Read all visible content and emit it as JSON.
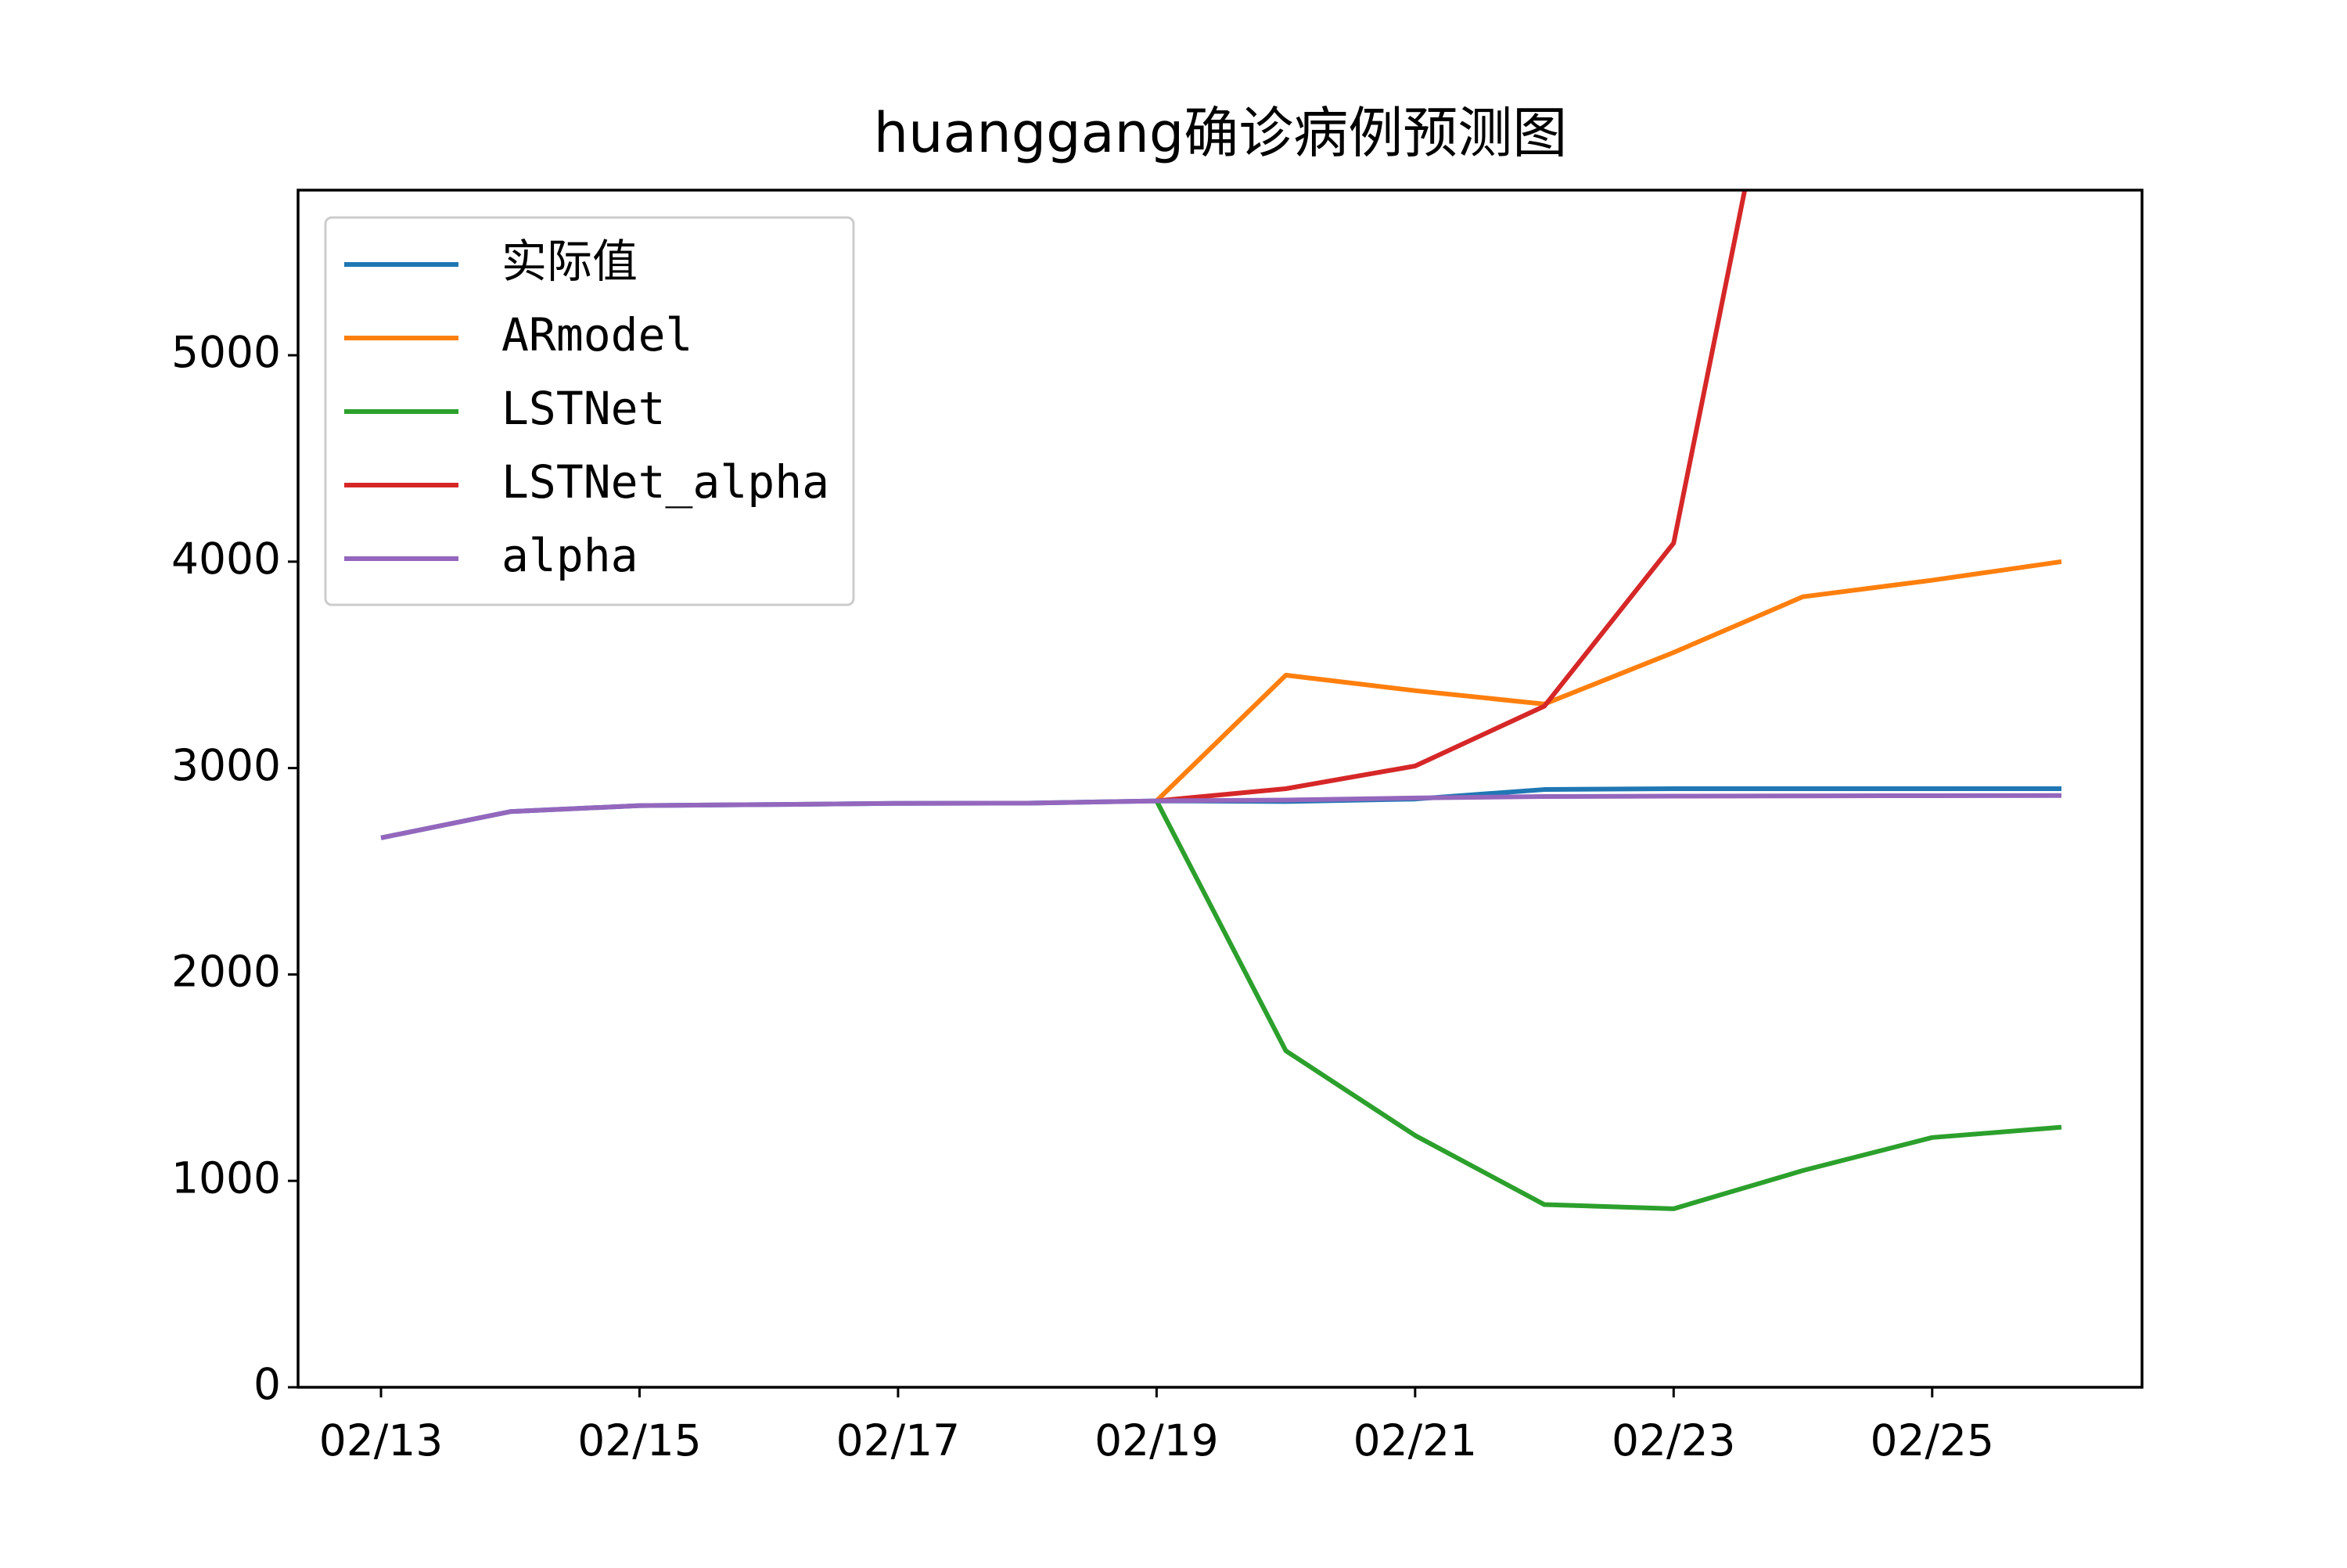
{
  "chart_data": {
    "type": "line",
    "title": "huanggang确诊病例预测图",
    "categories": [
      "02/13",
      null,
      "02/15",
      null,
      "02/17",
      null,
      "02/19",
      null,
      "02/21",
      null,
      "02/23",
      null,
      "02/25",
      null
    ],
    "series": [
      {
        "name": "实际值",
        "color": "#1f77b4",
        "values": [
          2662,
          2789,
          2818,
          2823,
          2829,
          2830,
          2841,
          2838,
          2850,
          2896,
          2900,
          2900,
          2900,
          2900
        ]
      },
      {
        "name": "ARmodel",
        "color": "#ff7f0e",
        "values": [
          null,
          null,
          null,
          null,
          null,
          null,
          2841,
          3450,
          3375,
          3310,
          3560,
          3830,
          3910,
          4000
        ]
      },
      {
        "name": "LSTNet",
        "color": "#2ca02c",
        "values": [
          null,
          null,
          null,
          null,
          null,
          null,
          2841,
          1630,
          1220,
          885,
          865,
          1050,
          1210,
          1260
        ]
      },
      {
        "name": "LSTNet_alpha",
        "color": "#d62728",
        "values": [
          null,
          null,
          null,
          null,
          null,
          null,
          2841,
          2900,
          3010,
          3300,
          4090,
          7200,
          null,
          null
        ]
      },
      {
        "name": "alpha",
        "color": "#9467bd",
        "values": [
          2662,
          2789,
          2818,
          2823,
          2829,
          2830,
          2841,
          2845,
          2855,
          2862,
          2864,
          2865,
          2866,
          2867
        ]
      }
    ],
    "ylim": [
      0,
      5800
    ],
    "yticks": [
      0,
      1000,
      2000,
      3000,
      4000,
      5000
    ],
    "grid": false,
    "legend": "upper-left"
  }
}
